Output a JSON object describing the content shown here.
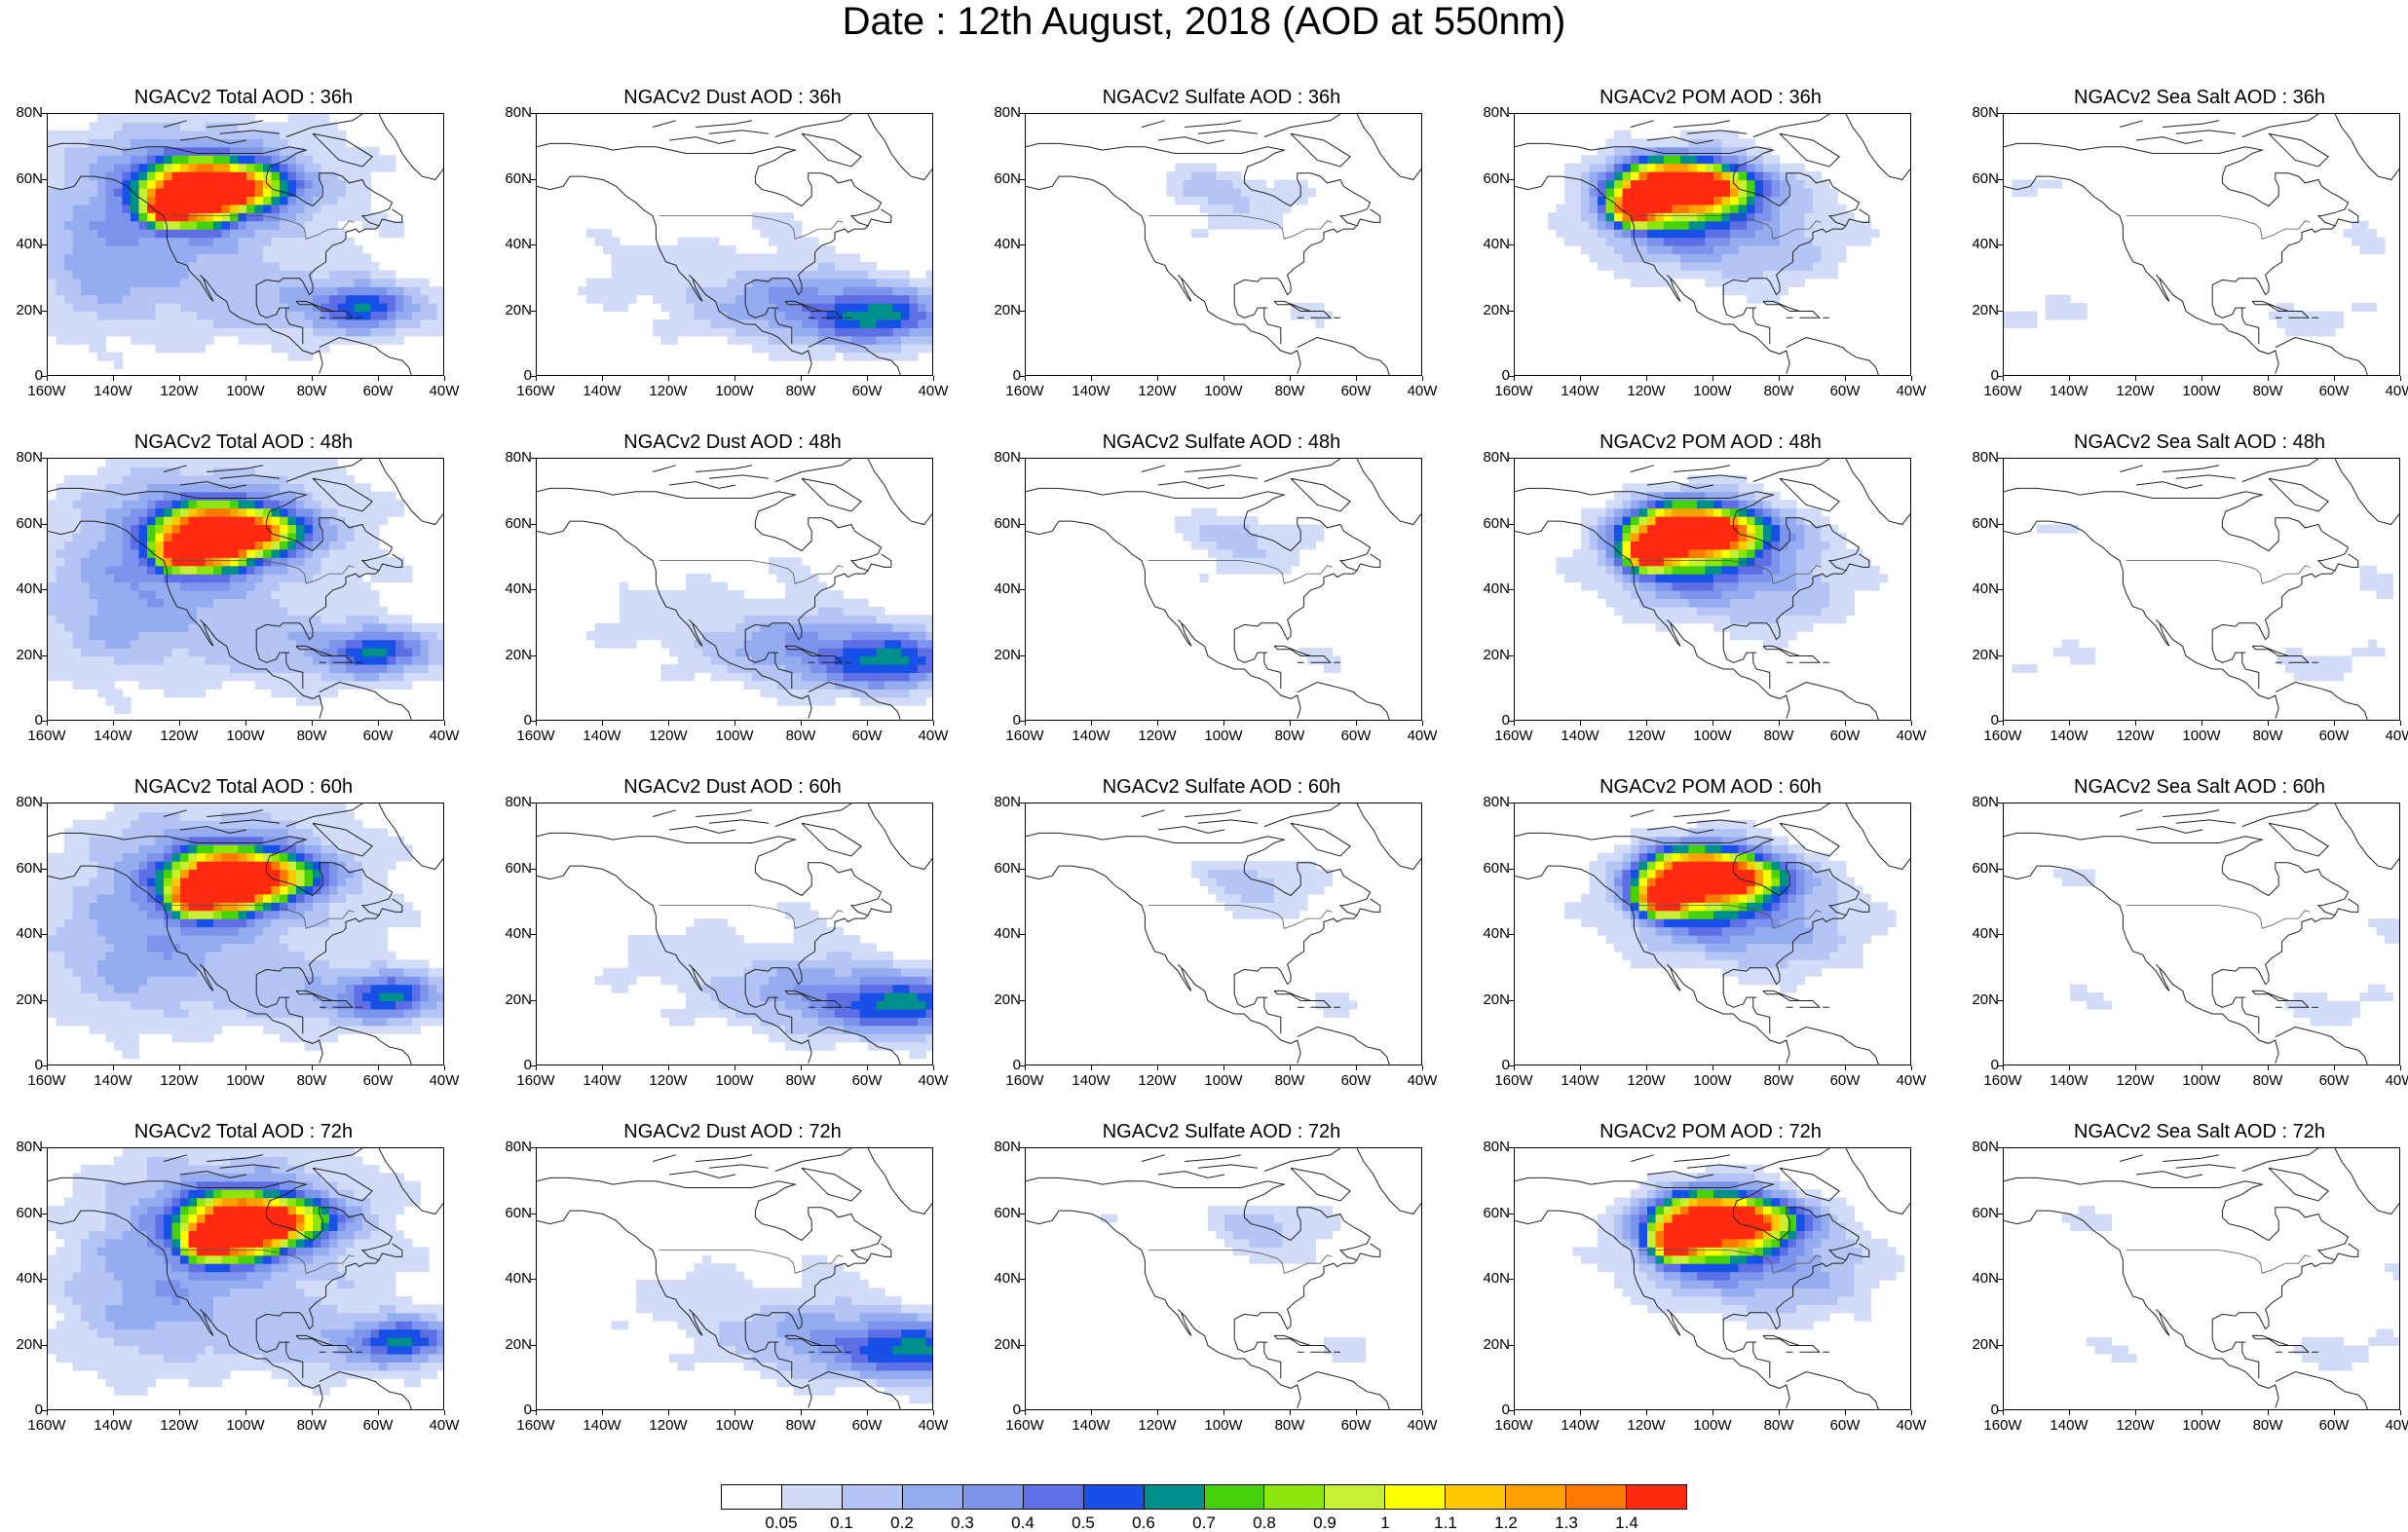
{
  "title": "Date : 12th August, 2018 (AOD at 550nm)",
  "map_axes": {
    "lat_labels": [
      "80N",
      "60N",
      "40N",
      "20N",
      "0"
    ],
    "lon_labels": [
      "160W",
      "140W",
      "120W",
      "100W",
      "80W",
      "60W",
      "40W"
    ],
    "lat_range": [
      0,
      80
    ],
    "lon_range": [
      -160,
      -40
    ]
  },
  "panels": [
    {
      "title": "NGACv2 Total AOD : 36h",
      "field": "total",
      "lead": 36
    },
    {
      "title": "NGACv2 Dust AOD : 36h",
      "field": "dust",
      "lead": 36
    },
    {
      "title": "NGACv2 Sulfate AOD : 36h",
      "field": "sulfate",
      "lead": 36
    },
    {
      "title": "NGACv2 POM AOD : 36h",
      "field": "pom",
      "lead": 36
    },
    {
      "title": "NGACv2 Sea Salt AOD : 36h",
      "field": "seasalt",
      "lead": 36
    },
    {
      "title": "NGACv2 Total AOD : 48h",
      "field": "total",
      "lead": 48
    },
    {
      "title": "NGACv2 Dust AOD : 48h",
      "field": "dust",
      "lead": 48
    },
    {
      "title": "NGACv2 Sulfate AOD : 48h",
      "field": "sulfate",
      "lead": 48
    },
    {
      "title": "NGACv2 POM AOD : 48h",
      "field": "pom",
      "lead": 48
    },
    {
      "title": "NGACv2 Sea Salt AOD : 48h",
      "field": "seasalt",
      "lead": 48
    },
    {
      "title": "NGACv2 Total AOD : 60h",
      "field": "total",
      "lead": 60
    },
    {
      "title": "NGACv2 Dust AOD : 60h",
      "field": "dust",
      "lead": 60
    },
    {
      "title": "NGACv2 Sulfate AOD : 60h",
      "field": "sulfate",
      "lead": 60
    },
    {
      "title": "NGACv2 POM AOD : 60h",
      "field": "pom",
      "lead": 60
    },
    {
      "title": "NGACv2 Sea Salt AOD : 60h",
      "field": "seasalt",
      "lead": 60
    },
    {
      "title": "NGACv2 Total AOD : 72h",
      "field": "total",
      "lead": 72
    },
    {
      "title": "NGACv2 Dust AOD : 72h",
      "field": "dust",
      "lead": 72
    },
    {
      "title": "NGACv2 Sulfate AOD : 72h",
      "field": "sulfate",
      "lead": 72
    },
    {
      "title": "NGACv2 POM AOD : 72h",
      "field": "pom",
      "lead": 72
    },
    {
      "title": "NGACv2 Sea Salt  AOD : 72h",
      "field": "seasalt",
      "lead": 72
    }
  ],
  "colorbar": {
    "labels": [
      "0.05",
      "0.1",
      "0.2",
      "0.3",
      "0.4",
      "0.5",
      "0.6",
      "0.7",
      "0.8",
      "0.9",
      "1",
      "1.1",
      "1.2",
      "1.3",
      "1.4"
    ],
    "colors": [
      "#ffffff",
      "#d2dcf8",
      "#b4c4f4",
      "#96acf0",
      "#7c94ec",
      "#5e6ee4",
      "#1650e6",
      "#00908c",
      "#46d20a",
      "#8ce60a",
      "#c8f032",
      "#ffff00",
      "#ffc800",
      "#ffa000",
      "#ff7800",
      "#ff2a10"
    ]
  }
}
